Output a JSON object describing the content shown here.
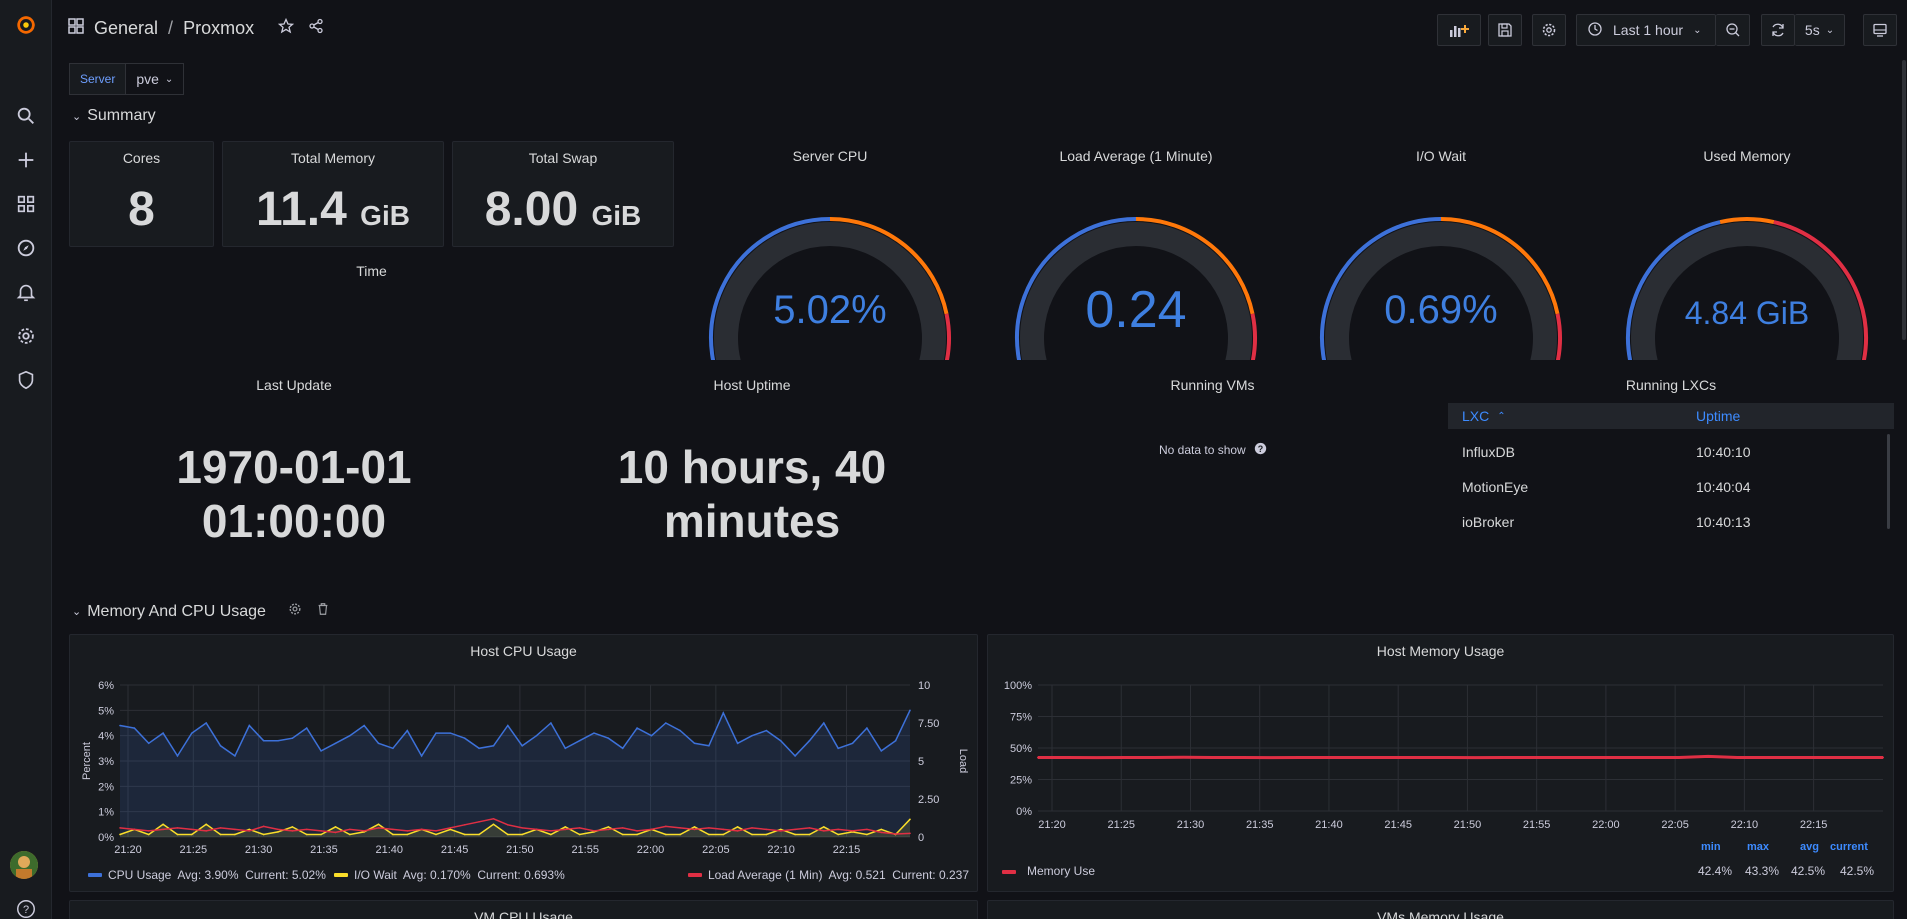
{
  "breadcrumb": {
    "folder": "General",
    "separator": "/",
    "dashboard": "Proxmox"
  },
  "toolbar": {
    "time_range": "Last 1 hour",
    "refresh": "5s"
  },
  "variables": {
    "label": "Server",
    "value": "pve"
  },
  "rows": {
    "summary": "Summary",
    "memory_cpu": "Memory And CPU Usage"
  },
  "stats": {
    "cores": {
      "title": "Cores",
      "value": "8"
    },
    "total_memory": {
      "title": "Total Memory",
      "value": "11.4",
      "unit": "GiB"
    },
    "total_swap": {
      "title": "Total Swap",
      "value": "8.00",
      "unit": "GiB"
    },
    "time_title": "Time"
  },
  "gauges": [
    {
      "title": "Server CPU",
      "value": "5.02%",
      "fraction": 0.0502
    },
    {
      "title": "Load Average (1 Minute)",
      "value": "0.24",
      "fraction": 0.03
    },
    {
      "title": "I/O Wait",
      "value": "0.69%",
      "fraction": 0.0069
    },
    {
      "title": "Used Memory",
      "value": "4.84 GiB",
      "fraction": 0.06
    }
  ],
  "last_update": {
    "title": "Last Update",
    "line1": "1970-01-01",
    "line2": "01:00:00"
  },
  "host_uptime": {
    "title": "Host Uptime",
    "line1": "10 hours, 40",
    "line2": "minutes"
  },
  "running_vms": {
    "title": "Running VMs",
    "empty": "No data to show"
  },
  "running_lxcs": {
    "title": "Running LXCs",
    "col_name": "LXC",
    "col_uptime": "Uptime",
    "rows": [
      {
        "name": "InfluxDB",
        "uptime": "10:40:10"
      },
      {
        "name": "MotionEye",
        "uptime": "10:40:04"
      },
      {
        "name": "ioBroker",
        "uptime": "10:40:13"
      }
    ]
  },
  "host_cpu": {
    "title": "Host CPU Usage",
    "legend": {
      "cpu": "CPU Usage  Avg: 3.90%  Current: 5.02%",
      "iowait": "I/O Wait  Avg: 0.170%  Current: 0.693%",
      "load": "Load Average (1 Min)  Avg: 0.521  Current: 0.237"
    }
  },
  "host_memory": {
    "title": "Host Memory Usage",
    "legend": {
      "name": "Memory Use",
      "min_label": "min",
      "max_label": "max",
      "avg_label": "avg",
      "current_label": "current",
      "min": "42.4%",
      "max": "43.3%",
      "avg": "42.5%",
      "current": "42.5%"
    }
  },
  "bottom_titles": {
    "vm_cpu": "VM CPU Usage",
    "vms_memory": "VMs Memory Usage"
  },
  "colors": {
    "blue": "#3d71d9",
    "orange": "#ff780a",
    "red": "#e02f44",
    "yellow": "#fade2a",
    "bg": "#111217",
    "panel": "#181b1f"
  },
  "chart_data": [
    {
      "type": "line",
      "title": "Host CPU Usage",
      "ylabel": "Percent",
      "y2label": "Load",
      "ylim": [
        0,
        6
      ],
      "y2lim": [
        0,
        10
      ],
      "yticks": [
        "0%",
        "1%",
        "2%",
        "3%",
        "4%",
        "5%",
        "6%"
      ],
      "y2ticks": [
        "0",
        "2.50",
        "5",
        "7.50",
        "10"
      ],
      "xticks": [
        "21:20",
        "21:25",
        "21:30",
        "21:35",
        "21:40",
        "21:45",
        "21:50",
        "21:55",
        "22:00",
        "22:05",
        "22:10",
        "22:15"
      ],
      "series": [
        {
          "name": "CPU Usage",
          "axis": "left",
          "values": [
            4.4,
            4.3,
            3.7,
            4.1,
            3.2,
            4.1,
            4.5,
            3.6,
            3.2,
            4.4,
            3.8,
            3.8,
            3.9,
            4.3,
            3.4,
            3.7,
            4.0,
            4.4,
            3.7,
            3.5,
            4.2,
            3.2,
            4.1,
            4.1,
            3.9,
            3.5,
            3.6,
            4.4,
            3.6,
            4.0,
            4.5,
            3.5,
            3.8,
            4.1,
            3.9,
            3.5,
            4.3,
            4.0,
            4.5,
            4.2,
            3.7,
            3.6,
            4.9,
            3.7,
            4.0,
            4.2,
            3.8,
            3.2,
            3.8,
            4.5,
            3.5,
            3.7,
            4.3,
            3.4,
            3.8,
            5.0
          ]
        },
        {
          "name": "I/O Wait",
          "axis": "left",
          "values": [
            0.1,
            0.3,
            0.1,
            0.5,
            0.1,
            0.1,
            0.5,
            0.1,
            0.1,
            0.3,
            0.1,
            0.2,
            0.4,
            0.1,
            0.1,
            0.4,
            0.1,
            0.2,
            0.5,
            0.1,
            0.1,
            0.3,
            0.1,
            0.3,
            0.1,
            0.1,
            0.5,
            0.1,
            0.1,
            0.3,
            0.1,
            0.4,
            0.1,
            0.2,
            0.4,
            0.1,
            0.1,
            0.3,
            0.1,
            0.1,
            0.4,
            0.1,
            0.1,
            0.4,
            0.1,
            0.1,
            0.3,
            0.1,
            0.1,
            0.4,
            0.1,
            0.2,
            0.1,
            0.3,
            0.1,
            0.7
          ]
        },
        {
          "name": "Load Average (1 Min)",
          "axis": "right",
          "values": [
            0.6,
            0.5,
            0.4,
            0.5,
            0.6,
            0.5,
            0.4,
            0.6,
            0.5,
            0.4,
            0.7,
            0.5,
            0.4,
            0.5,
            0.4,
            0.3,
            0.5,
            0.4,
            0.6,
            0.5,
            0.4,
            0.5,
            0.4,
            0.6,
            0.8,
            1.0,
            1.2,
            0.8,
            0.6,
            0.5,
            0.4,
            0.5,
            0.6,
            0.4,
            0.5,
            0.6,
            0.4,
            0.5,
            0.7,
            0.6,
            0.5,
            0.6,
            0.5,
            0.4,
            0.6,
            0.5,
            0.4,
            0.5,
            0.6,
            0.4,
            0.5,
            0.4,
            0.5,
            0.3,
            0.2,
            0.24
          ]
        }
      ]
    },
    {
      "type": "line",
      "title": "Host Memory Usage",
      "ylim": [
        0,
        100
      ],
      "yticks": [
        "0%",
        "25%",
        "50%",
        "75%",
        "100%"
      ],
      "xticks": [
        "21:20",
        "21:25",
        "21:30",
        "21:35",
        "21:40",
        "21:45",
        "21:50",
        "21:55",
        "22:00",
        "22:05",
        "22:10",
        "22:15"
      ],
      "series": [
        {
          "name": "Memory Use",
          "values": [
            42.5,
            42.5,
            42.4,
            42.5,
            42.5,
            42.6,
            42.5,
            42.5,
            42.4,
            42.5,
            42.5,
            42.5,
            42.5,
            42.5,
            42.5,
            42.4,
            42.5,
            42.5,
            42.5,
            42.5,
            42.5,
            42.5,
            42.5,
            43.3,
            42.5,
            42.5,
            42.5,
            42.5,
            42.5,
            42.5
          ]
        }
      ]
    }
  ]
}
